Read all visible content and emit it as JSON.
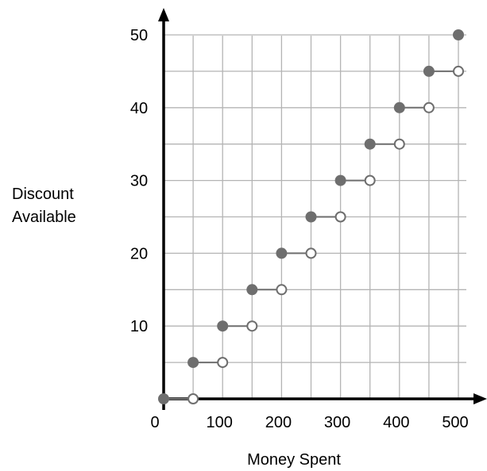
{
  "chart_data": {
    "type": "scatter",
    "subtype": "step-function",
    "title": "",
    "xlabel": "Money Spent",
    "ylabel": [
      "Discount",
      "Available"
    ],
    "xlim": [
      0,
      550
    ],
    "ylim": [
      0,
      50
    ],
    "x_ticks": [
      0,
      100,
      200,
      300,
      400,
      500
    ],
    "y_ticks": [
      10,
      20,
      30,
      40,
      50
    ],
    "grid": true,
    "marker_color": "#6e6e6e",
    "axis_color": "#000000",
    "grid_color": "#b4b4b4",
    "open_marker_fill": "#ffffff",
    "steps": [
      {
        "x_closed": 0,
        "x_open": 50,
        "y": 0
      },
      {
        "x_closed": 50,
        "x_open": 100,
        "y": 5
      },
      {
        "x_closed": 100,
        "x_open": 150,
        "y": 10
      },
      {
        "x_closed": 150,
        "x_open": 200,
        "y": 15
      },
      {
        "x_closed": 200,
        "x_open": 250,
        "y": 20
      },
      {
        "x_closed": 250,
        "x_open": 300,
        "y": 25
      },
      {
        "x_closed": 300,
        "x_open": 350,
        "y": 30
      },
      {
        "x_closed": 350,
        "x_open": 400,
        "y": 35
      },
      {
        "x_closed": 400,
        "x_open": 450,
        "y": 40
      },
      {
        "x_closed": 450,
        "x_open": 500,
        "y": 45
      },
      {
        "x_closed": 500,
        "x_open": null,
        "y": 50
      }
    ]
  }
}
